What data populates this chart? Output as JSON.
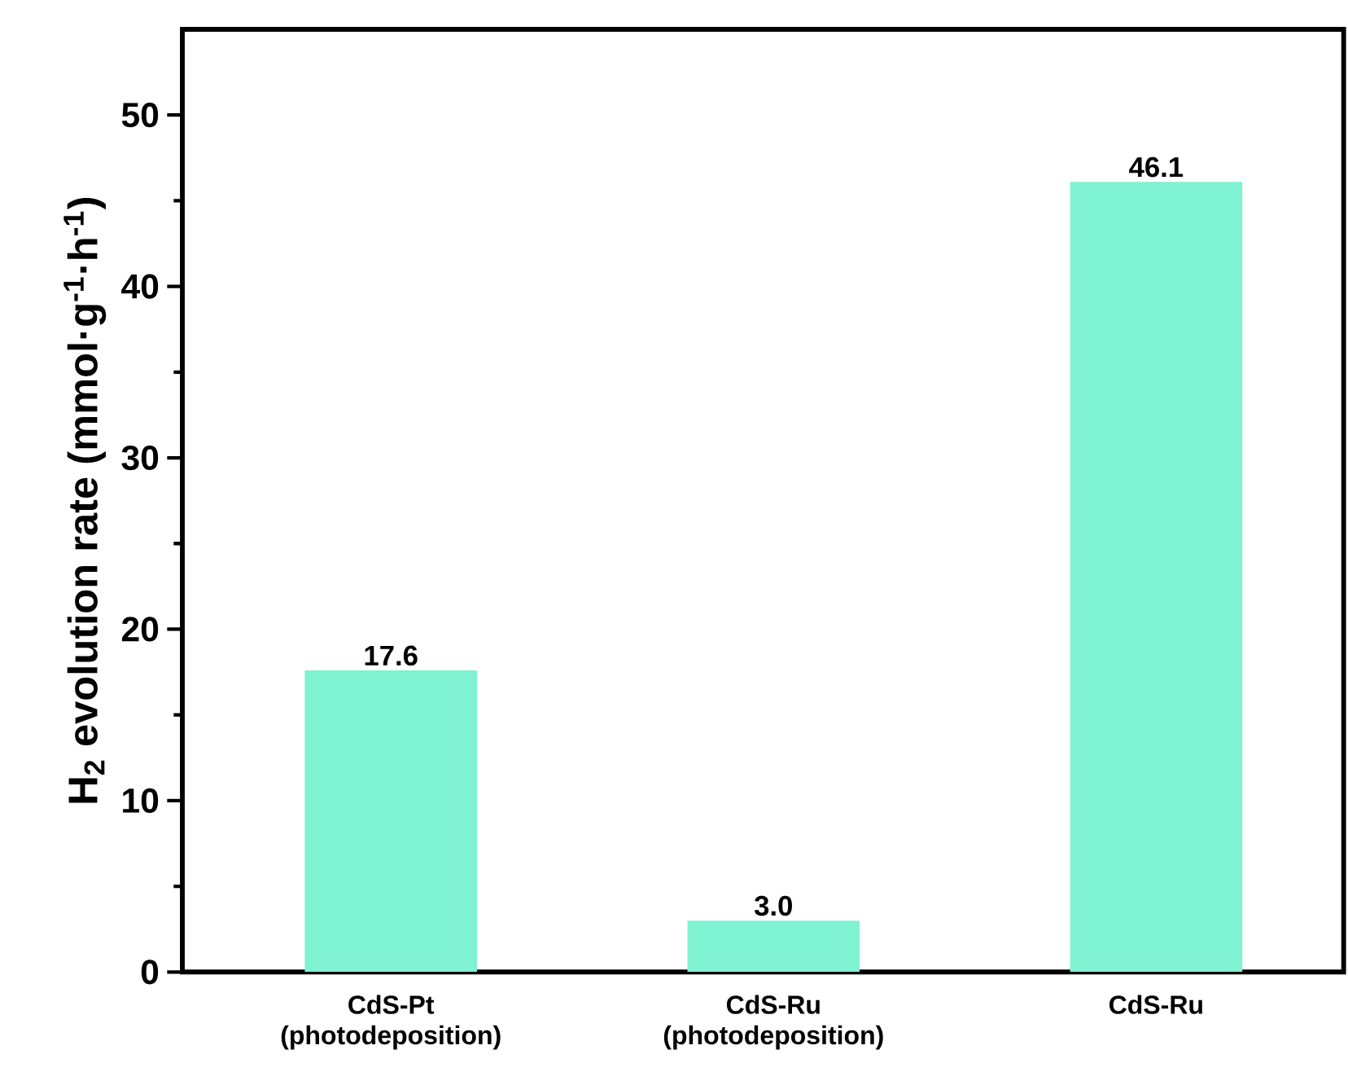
{
  "chart_data": {
    "type": "bar",
    "ylabel": "H$_{2}$ evolution rate (mmol·g$^{-1}$·h$^{-1}$)",
    "categories": [
      "CdS-Pt (photodeposition)",
      "CdS-Ru (photodeposition)",
      "CdS-Ru"
    ],
    "values": [
      17.6,
      3.0,
      46.1
    ],
    "color": "#7ff2d2",
    "value_labels": [
      "17.6",
      "3.0",
      "46.1"
    ],
    "ylim": [
      0,
      55
    ],
    "yticks": [
      0,
      10,
      20,
      30,
      40,
      50
    ],
    "grid": false
  }
}
